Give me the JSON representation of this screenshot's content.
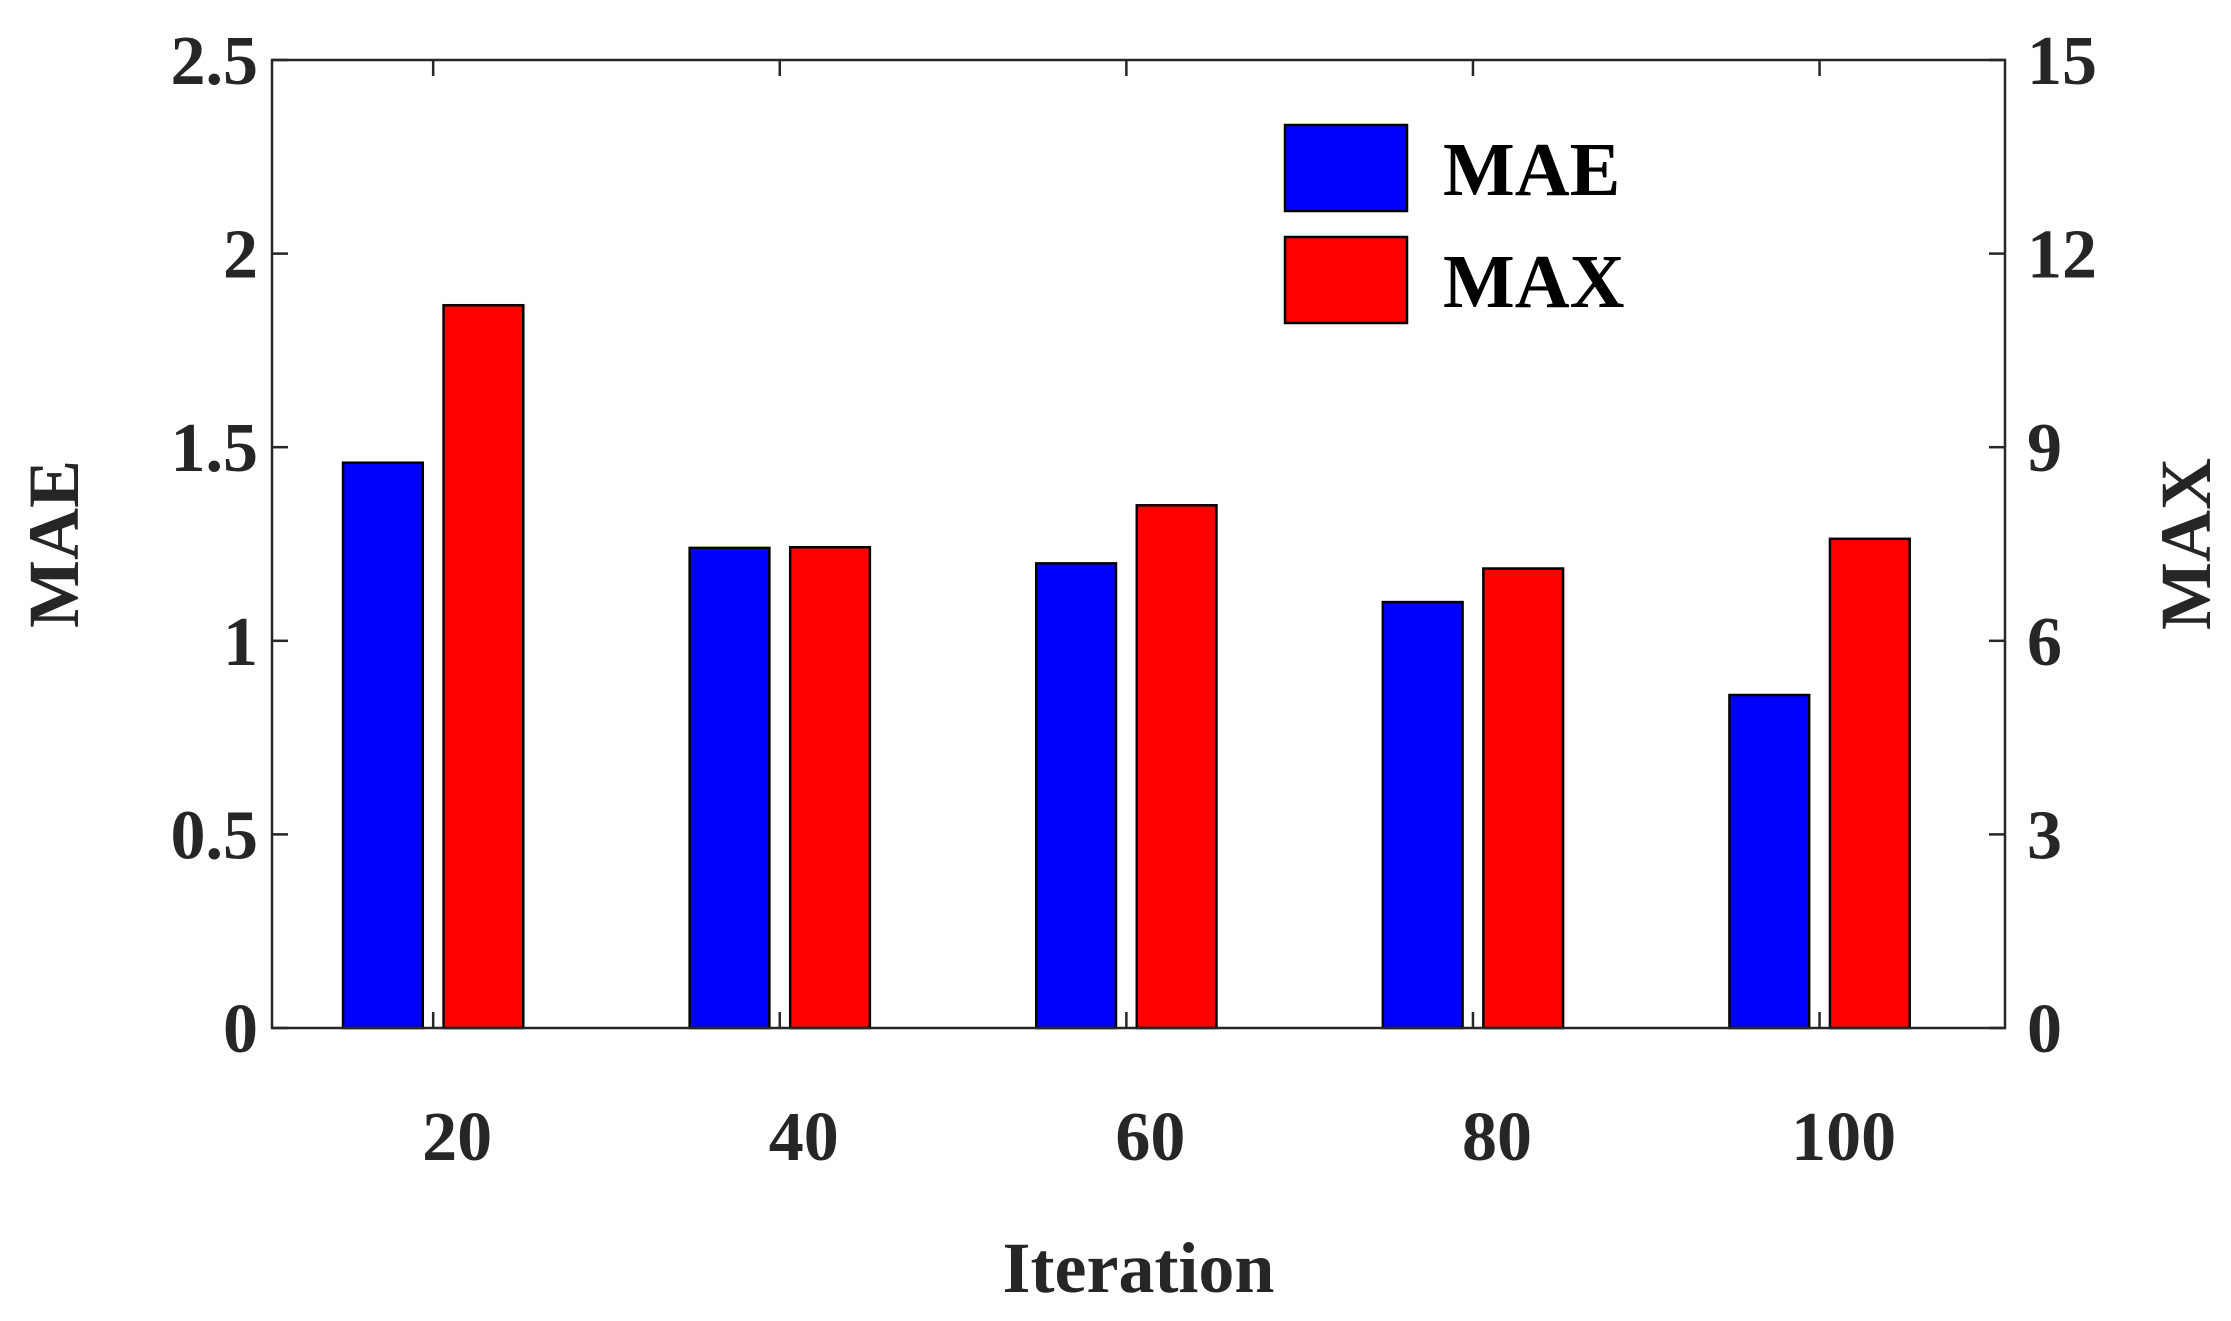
{
  "chart_data": {
    "type": "bar",
    "title": "",
    "xlabel": "Iteration",
    "ylabel_left": "MAE",
    "ylabel_right": "MAX",
    "categories": [
      "20",
      "40",
      "60",
      "80",
      "100"
    ],
    "series": [
      {
        "name": "MAE",
        "axis": "left",
        "color": "#0000ff",
        "values": [
          1.46,
          1.24,
          1.2,
          1.1,
          0.86
        ]
      },
      {
        "name": "MAX",
        "axis": "right",
        "color": "#ff0000",
        "values": [
          11.2,
          7.45,
          8.1,
          7.12,
          7.58
        ]
      }
    ],
    "y_left": {
      "range": [
        0,
        2.5
      ],
      "ticks": [
        0,
        0.5,
        1,
        1.5,
        2,
        2.5
      ],
      "tick_labels": [
        "0",
        "0.5",
        "1",
        "1.5",
        "2",
        "2.5"
      ]
    },
    "y_right": {
      "range": [
        0,
        15
      ],
      "ticks": [
        0,
        3,
        6,
        9,
        12,
        15
      ],
      "tick_labels": [
        "0",
        "3",
        "6",
        "9",
        "12",
        "15"
      ]
    },
    "legend": {
      "position": "top-right",
      "entries": [
        "MAE",
        "MAX"
      ]
    },
    "grid": false
  }
}
